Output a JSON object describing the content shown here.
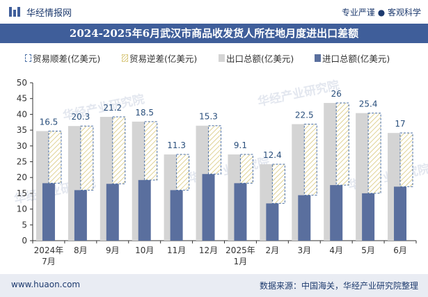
{
  "header": {
    "brand": "华经情报网",
    "slogan": "专业严谨 ● 客观科学"
  },
  "watermark": "华经产业研究院",
  "chart_data": {
    "type": "bar",
    "title": "2024-2025年6月武汉市商品收发货人所在地月度进出口差额",
    "categories": [
      [
        "2024年",
        "7月"
      ],
      [
        "8月"
      ],
      [
        "9月"
      ],
      [
        "10月"
      ],
      [
        "11月"
      ],
      [
        "12月"
      ],
      [
        "2025年",
        "1月"
      ],
      [
        "2月"
      ],
      [
        "3月"
      ],
      [
        "4月"
      ],
      [
        "5月"
      ],
      [
        "6月"
      ]
    ],
    "series": [
      {
        "name": "贸易顺差(亿美元)",
        "values": [
          16.5,
          20.3,
          21.2,
          18.5,
          11.3,
          15.3,
          9.1,
          12.4,
          22.5,
          26,
          25.4,
          17
        ],
        "color": "#4a6fa5"
      },
      {
        "name": "贸易逆差(亿美元)",
        "values": [
          0,
          0,
          0,
          0,
          0,
          0,
          0,
          0,
          0,
          0,
          0,
          0
        ],
        "color": "#d8c77b"
      },
      {
        "name": "出口总额(亿美元)",
        "values": [
          34.7,
          36.3,
          39.2,
          37.7,
          27.3,
          36.4,
          27.3,
          24.2,
          36.9,
          43.6,
          40.4,
          34.1
        ],
        "color": "#d4d4d4"
      },
      {
        "name": "进口总额(亿美元)",
        "values": [
          18.2,
          16.0,
          18.0,
          19.2,
          16.0,
          21.1,
          18.2,
          11.8,
          14.4,
          17.6,
          15.0,
          17.1
        ],
        "color": "#5a6f9e"
      }
    ],
    "data_labels": [
      "16.5",
      "20.3",
      "21.2",
      "18.5",
      "11.3",
      "15.3",
      "9.1",
      "12.4",
      "22.5",
      "26",
      "25.4",
      "17"
    ],
    "ylim": [
      0,
      50
    ],
    "yticks": [
      0,
      5,
      10,
      15,
      20,
      25,
      30,
      35,
      40,
      45,
      50
    ],
    "grid": false,
    "legend_position": "top"
  },
  "footer": {
    "website": "www.huaon.com",
    "source": "数据来源：中国海关，华经产业研究院整理"
  }
}
